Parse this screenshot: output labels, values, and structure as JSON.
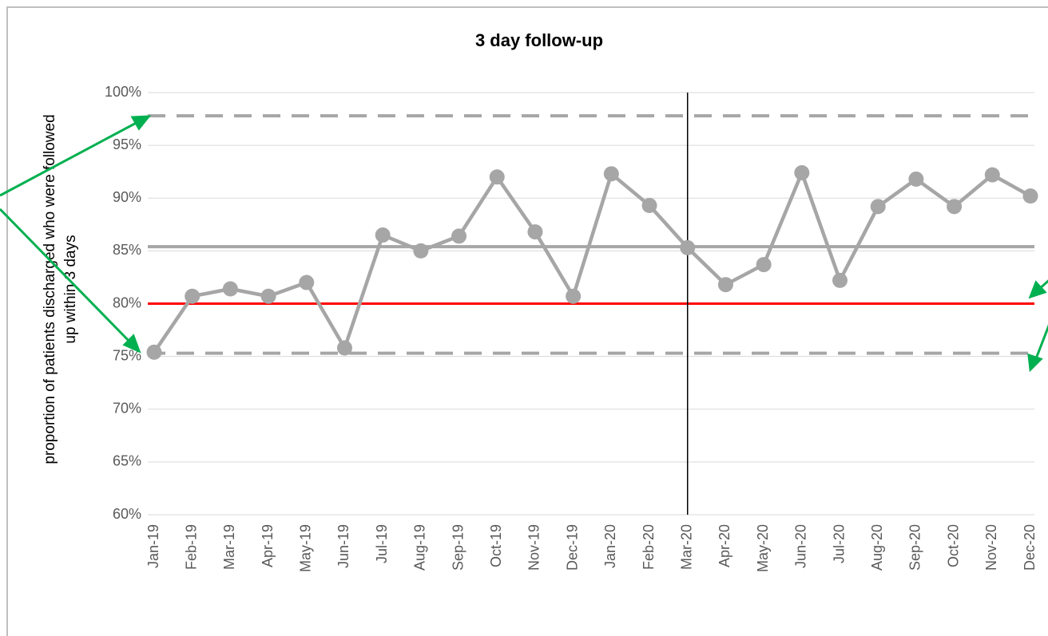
{
  "chart_data": {
    "type": "line",
    "title": "3 day follow-up",
    "ylabel": [
      "proportion of patients discharged  who were followed",
      "up within 3 days"
    ],
    "categories": [
      "Jan-19",
      "Feb-19",
      "Mar-19",
      "Apr-19",
      "May-19",
      "Jun-19",
      "Jul-19",
      "Aug-19",
      "Sep-19",
      "Oct-19",
      "Nov-19",
      "Dec-19",
      "Jan-20",
      "Feb-20",
      "Mar-20",
      "Apr-20",
      "May-20",
      "Jun-20",
      "Jul-20",
      "Aug-20",
      "Sep-20",
      "Oct-20",
      "Nov-20",
      "Dec-20"
    ],
    "series": [
      {
        "name": "proportion",
        "color": "#a6a6a6",
        "values": [
          75.4,
          80.7,
          81.4,
          80.7,
          82.0,
          75.8,
          86.5,
          85.0,
          86.4,
          92.0,
          86.8,
          80.7,
          92.3,
          89.3,
          85.3,
          81.8,
          83.7,
          92.4,
          82.2,
          89.2,
          91.8,
          89.2,
          92.2,
          90.2
        ]
      }
    ],
    "reference_lines": [
      {
        "value": 97.8,
        "style": "dashed",
        "color": "#a6a6a6"
      },
      {
        "value": 85.4,
        "style": "solid",
        "color": "#a6a6a6"
      },
      {
        "value": 80,
        "style": "solid",
        "color": "#ff0000"
      },
      {
        "value": 75.3,
        "style": "dashed",
        "color": "#a6a6a6"
      }
    ],
    "vline": "Mar-20",
    "ylim": [
      60,
      100
    ],
    "yticks": [
      {
        "value": 60,
        "label": "60%"
      },
      {
        "value": 65,
        "label": "65%"
      },
      {
        "value": 70,
        "label": "70%"
      },
      {
        "value": 75,
        "label": "75%"
      },
      {
        "value": 80,
        "label": "80%"
      },
      {
        "value": 85,
        "label": "85%"
      },
      {
        "value": 90,
        "label": "90%"
      },
      {
        "value": 95,
        "label": "95%"
      },
      {
        "value": 100,
        "label": "100%"
      }
    ],
    "grid": true
  }
}
